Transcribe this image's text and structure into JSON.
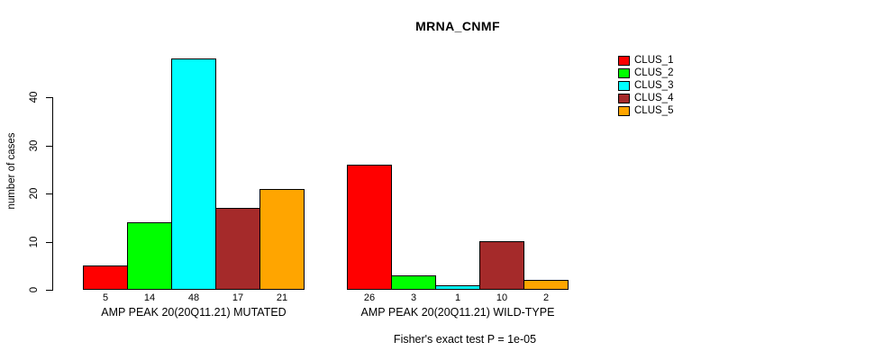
{
  "chart_data": {
    "type": "bar",
    "title": "MRNA_CNMF",
    "ylabel": "number of cases",
    "caption": "Fisher's exact test P = 1e-05",
    "y_ticks": [
      0,
      10,
      20,
      30,
      40
    ],
    "ylim": [
      0,
      48
    ],
    "grid": false,
    "legend_position": "right",
    "legend": [
      {
        "name": "CLUS_1",
        "color": "#FF0000"
      },
      {
        "name": "CLUS_2",
        "color": "#00FF00"
      },
      {
        "name": "CLUS_3",
        "color": "#00FFFF"
      },
      {
        "name": "CLUS_4",
        "color": "#A52A2A"
      },
      {
        "name": "CLUS_5",
        "color": "#FFA500"
      }
    ],
    "groups": [
      {
        "label": "AMP PEAK 20(20Q11.21) MUTATED",
        "values": [
          5,
          14,
          48,
          17,
          21
        ]
      },
      {
        "label": "AMP PEAK 20(20Q11.21) WILD-TYPE",
        "values": [
          26,
          3,
          1,
          10,
          2
        ]
      }
    ],
    "colors": {
      "background": "#FFFFFF",
      "axis": "#000000",
      "text": "#000000"
    }
  }
}
